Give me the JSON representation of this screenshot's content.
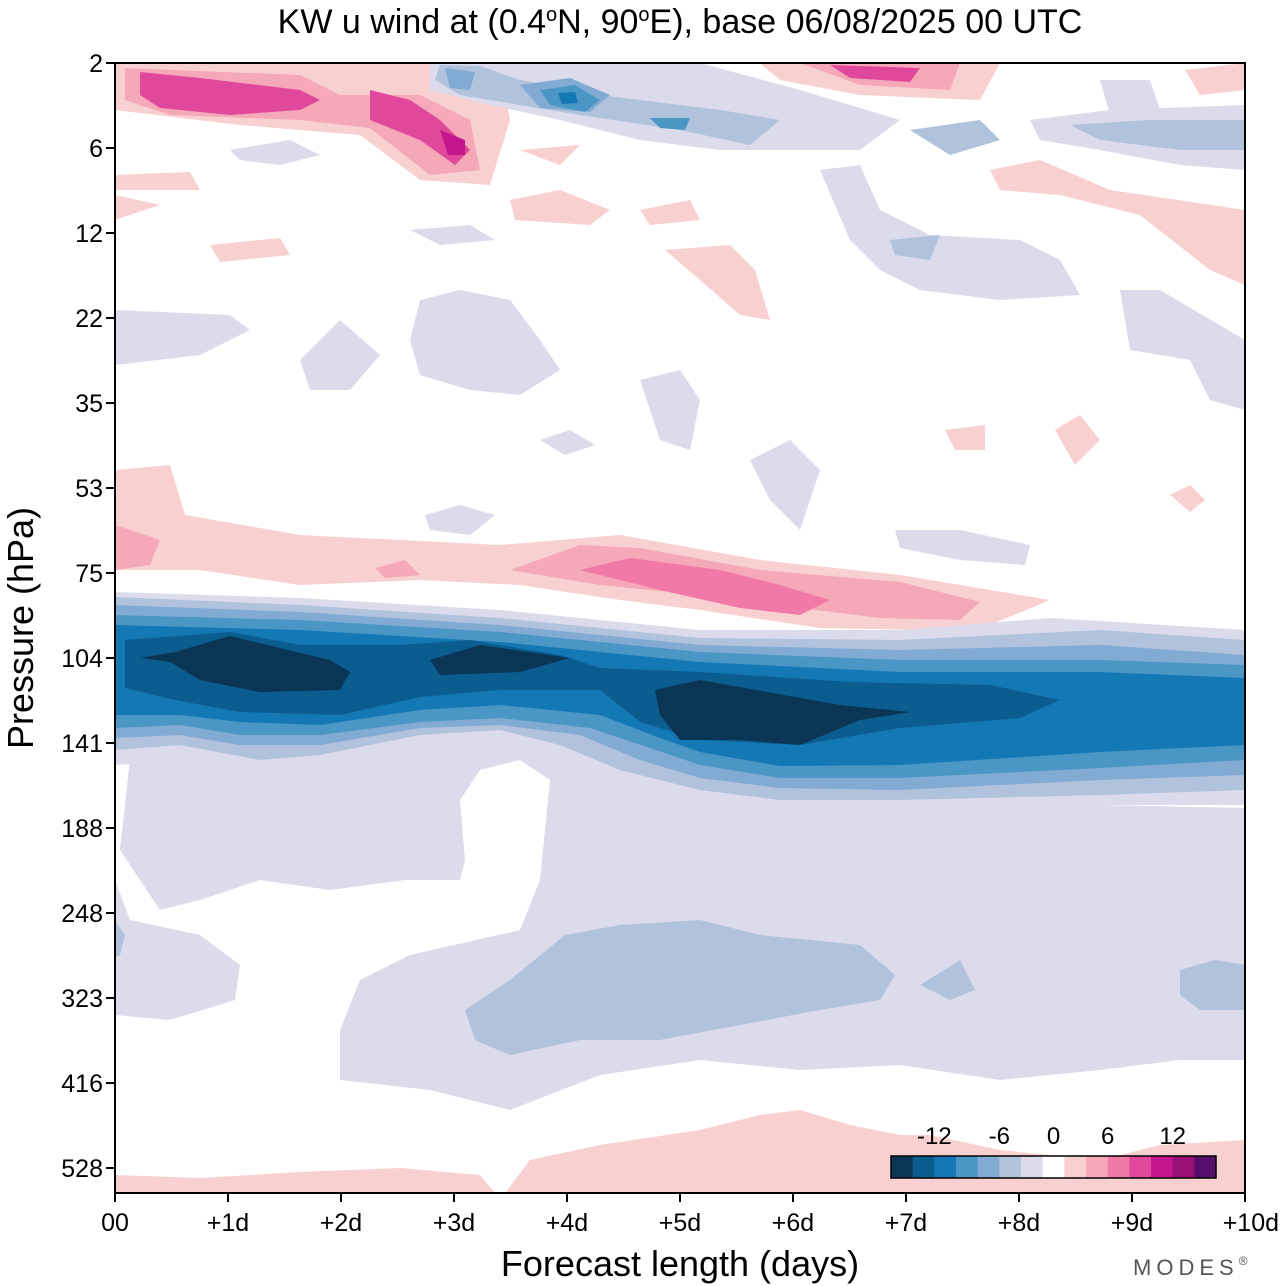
{
  "chart_data": {
    "type": "heatmap",
    "title": "KW u wind at (0.4°N, 90°E),  base 06/08/2025  00 UTC",
    "title_parts": {
      "prefix": "KW u wind at (0.4",
      "deg": "o",
      "mid": "N, 90",
      "deg2": "o",
      "suffix": "E),  base 06/08/2025  00 UTC"
    },
    "xlabel": "Forecast length (days)",
    "ylabel": "Pressure (hPa)",
    "x_ticks": [
      "00",
      "+1d",
      "+2d",
      "+3d",
      "+4d",
      "+5d",
      "+6d",
      "+7d",
      "+8d",
      "+9d",
      "+10d"
    ],
    "xlim": [
      0,
      10
    ],
    "y_ticks": [
      "2",
      "6",
      "12",
      "22",
      "35",
      "53",
      "75",
      "104",
      "141",
      "188",
      "248",
      "323",
      "416",
      "528"
    ],
    "y_scale": "log-pressure, top=2 hPa",
    "colorbar": {
      "tick_labels": [
        "-12",
        "-6",
        "0",
        "6",
        "12"
      ],
      "tick_values": [
        -12,
        -6,
        0,
        6,
        12
      ],
      "levels": [
        -16,
        -14,
        -12,
        -10,
        -8,
        -6,
        -4,
        -2,
        2,
        4,
        6,
        8,
        10,
        12,
        14,
        16
      ],
      "colors": [
        "#0a3554",
        "#0b5c8f",
        "#1478b5",
        "#4a97c6",
        "#81abd2",
        "#b1c2dd",
        "#dbdbeb",
        "#ffffff",
        "#f9d0d0",
        "#f5a8b8",
        "#f179a8",
        "#e0499b",
        "#c6168e",
        "#961075",
        "#54106b"
      ]
    },
    "features": [
      {
        "name": "strong easterly jet ~104-141 hPa",
        "peak_u": -16,
        "day_range": [
          0.5,
          7.0
        ]
      },
      {
        "name": "westerly band ~75 hPa",
        "peak_u": 8,
        "day_range": [
          3.5,
          6.5
        ]
      },
      {
        "name": "upper stratosphere westerlies ~2-6 hPa",
        "peak_u": 12,
        "day_range": [
          0.3,
          3.2
        ]
      },
      {
        "name": "upper stratosphere easterlies ~2-4 hPa",
        "peak_u": -12,
        "day_range": [
          2.8,
          4.5
        ]
      },
      {
        "name": "weak easterlies ~248-416 hPa",
        "peak_u": -5,
        "day_range": [
          3.0,
          9.5
        ]
      }
    ]
  },
  "branding": "MODES",
  "branding_mark": "®"
}
